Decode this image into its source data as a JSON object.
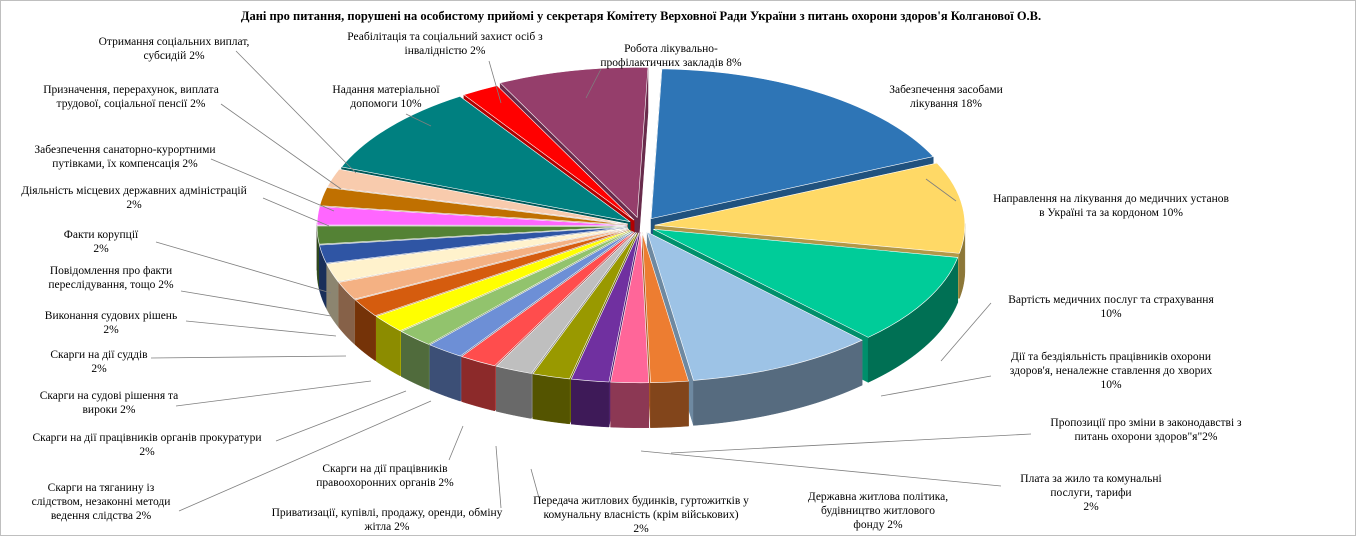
{
  "chart_data": {
    "type": "pie",
    "style": "3d-exploded",
    "title": "Дані про питання, порушені на особистому прийомі у секретаря Комітету Верховної Ради України з питань охорони здоров'я Колганової О.В.",
    "unit": "%",
    "slices": [
      {
        "id": "s1",
        "label": "Забезпечення засобами лікування 18%",
        "value": 18,
        "color": "#2e75b6"
      },
      {
        "id": "s2",
        "label": "Направлення на лікування до медичних установ в Україні та за кордоном 10%",
        "value": 10,
        "color": "#ffd966"
      },
      {
        "id": "s3",
        "label": "Вартість медичних послуг та страхування 10%",
        "value": 10,
        "color": "#00cc99"
      },
      {
        "id": "s4",
        "label": "Дії та бездіяльність працівників охорони здоров'я, неналежне ставлення до хворих 10%",
        "value": 10,
        "color": "#9dc3e6"
      },
      {
        "id": "s5",
        "label": "Пропозиції про зміни в законодавстві з питань охорони здоров\"я 2%",
        "value": 2,
        "color": "#ed7d31"
      },
      {
        "id": "s6",
        "label": "Плата за жило та комунальні послуги, тарифи 2%",
        "value": 2,
        "color": "#ff6699"
      },
      {
        "id": "s7",
        "label": "Державна житлова політика, будівництво житлового фонду 2%",
        "value": 2,
        "color": "#7030a0"
      },
      {
        "id": "s8",
        "label": "Передача житлових будинків, гуртожитків у комунальну власність (крім військових) 2%",
        "value": 2,
        "color": "#999900"
      },
      {
        "id": "s9",
        "label": "Приватизації, купівлі, продажу, оренди, обміну жітла 2%",
        "value": 2,
        "color": "#bfbfbf"
      },
      {
        "id": "s10",
        "label": "Скарги на дії працівників правоохоронних органів 2%",
        "value": 2,
        "color": "#ff4d4d"
      },
      {
        "id": "s11",
        "label": "Скарги на тяганину із слідством, незаконні методи ведення слідства 2%",
        "value": 2,
        "color": "#6d8fd6"
      },
      {
        "id": "s12",
        "label": "Скарги на дії працівників органів прокуратури 2%",
        "value": 2,
        "color": "#92c36d"
      },
      {
        "id": "s13",
        "label": "Скарги на судові рішення та вироки 2%",
        "value": 2,
        "color": "#ffff00"
      },
      {
        "id": "s14",
        "label": "Скарги на дії суддів 2%",
        "value": 2,
        "color": "#d55c0e"
      },
      {
        "id": "s15",
        "label": "Виконання судових рішень 2%",
        "value": 2,
        "color": "#f4b183"
      },
      {
        "id": "s16",
        "label": "Повідомлення про факти переслідування, тощо 2%",
        "value": 2,
        "color": "#fff2cc"
      },
      {
        "id": "s17",
        "label": "Факти корупції 2%",
        "value": 2,
        "color": "#2f55a4"
      },
      {
        "id": "s18",
        "label": "Діяльність місцевих державних адміністрацій 2%",
        "value": 2,
        "color": "#548235"
      },
      {
        "id": "s19",
        "label": "Забезпечення санаторно-курортними путівками, їх компенсація 2%",
        "value": 2,
        "color": "#ff66ff"
      },
      {
        "id": "s20",
        "label": "Призначення, перерахунок, виплата трудової, соціальної пенсії 2%",
        "value": 2,
        "color": "#c07000"
      },
      {
        "id": "s21",
        "label": "Отримання соціальних виплат, субсидій 2%",
        "value": 2,
        "color": "#f8cbad"
      },
      {
        "id": "s22",
        "label": "Надання матеріальної допомоги 10%",
        "value": 10,
        "color": "#008080"
      },
      {
        "id": "s23",
        "label": "Реабілітація та соціальний захист осіб з інвалідністю 2%",
        "value": 2,
        "color": "#ff0000"
      },
      {
        "id": "s24",
        "label": "Робота лікувально-профілактичних закладів 8%",
        "value": 8,
        "color": "#953e6b"
      }
    ],
    "legend": "none"
  },
  "labels_text": {
    "s1": [
      "Забезпечення засобами",
      "лікування 18%"
    ],
    "s2": [
      "Направлення на лікування до медичних установ",
      "в Україні та за кордоном 10%"
    ],
    "s3": [
      "Вартість  медичних послуг та страхування",
      "10%"
    ],
    "s4": [
      "Дії та бездіяльність працівників охорони",
      "здоров'я, неналежне ставлення до хворих",
      "10%"
    ],
    "s5": [
      "Пропозиції про зміни в законодавстві з",
      "питань охорони здоров\"я\"2%"
    ],
    "s6": [
      "Плата за жило та комунальні",
      "послуги, тарифи",
      "2%"
    ],
    "s7": [
      "Державна житлова політика,",
      "будівництво житлового",
      "фонду 2%"
    ],
    "s8": [
      "Передача житлових будинків, гуртожитків у",
      "комунальну власність (крім військових)",
      "2%"
    ],
    "s9": [
      "Приватизації, купівлі, продажу, оренди, обміну",
      "жітла 2%"
    ],
    "s10": [
      "Скарги на дії  працівників",
      "правоохоронних органів 2%"
    ],
    "s11": [
      "Скарги на тяганину із",
      "слідством, незаконні методи",
      "ведення слідства 2%"
    ],
    "s12": [
      "Скарги на дії  працівників органів прокуратури",
      "2%"
    ],
    "s13": [
      "Скарги на судові рішення та",
      "вироки 2%"
    ],
    "s14": [
      "Скарги на дії  суддів",
      "2%"
    ],
    "s15": [
      "Виконання судових рішень",
      "2%"
    ],
    "s16": [
      "Повідомлення про факти",
      "переслідування, тощо 2%"
    ],
    "s17": [
      "Факти корупції",
      "2%"
    ],
    "s18": [
      "Діяльність місцевих державних адміністрацій",
      "2%"
    ],
    "s19": [
      "Забезпечення санаторно-курортними",
      "путівками, їх  компенсація 2%"
    ],
    "s20": [
      "Призначення, перерахунок, виплата",
      "трудової, соціальної пенсії 2%"
    ],
    "s21": [
      "Отримання соціальних виплат,",
      "субсидій 2%"
    ],
    "s22": [
      "Надання матеріальної",
      "допомоги 10%"
    ],
    "s23": [
      "Реабілітація та соціальний захист осіб з",
      "інвалідністю 2%"
    ],
    "s24": [
      "Робота лікувально-",
      "профілактичних закладів 8%"
    ]
  }
}
